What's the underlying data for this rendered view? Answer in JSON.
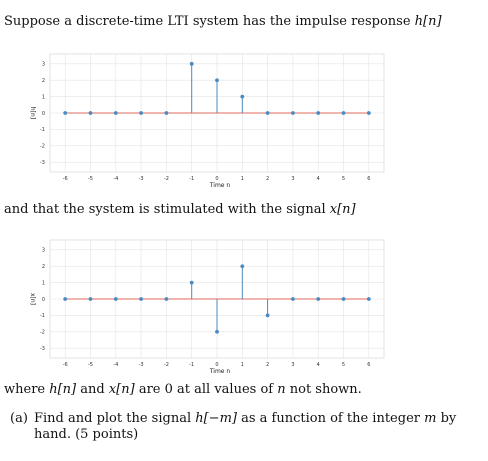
{
  "text": {
    "intro_prefix": "Suppose a discrete-time LTI system has the impulse response ",
    "intro_math": "h[n]",
    "middle_prefix": "and that the system is stimulated with the signal ",
    "middle_math": "x[n]",
    "where_1": "where ",
    "where_h": "h[n]",
    "where_2": " and ",
    "where_x": "x[n]",
    "where_3": " are 0 at all values of ",
    "where_n": "n",
    "where_4": " not shown.",
    "part_a_label": "(a)",
    "part_a_1": "Find and plot the signal ",
    "part_a_math": "h[−m]",
    "part_a_2": " as a function of the integer ",
    "part_a_m": "m",
    "part_a_3": " by hand. (5 points)"
  },
  "chart_data": [
    {
      "type": "stem",
      "xlabel": "Time n",
      "ylabel": "h[n]",
      "x": [
        -6,
        -5,
        -4,
        -3,
        -2,
        -1,
        0,
        1,
        2,
        3,
        4,
        5,
        6
      ],
      "values": [
        0,
        0,
        0,
        0,
        0,
        3,
        2,
        1,
        0,
        0,
        0,
        0,
        0
      ],
      "xticks": [
        "-6",
        "-5",
        "-4",
        "-3",
        "-2",
        "-1",
        "0",
        "1",
        "2",
        "3",
        "4",
        "5",
        "6"
      ],
      "yticks": [
        "3",
        "2",
        "1",
        "0",
        "-1",
        "-2",
        "-3"
      ],
      "ylim": [
        -3.6,
        3.6
      ],
      "xlim": [
        -6.6,
        6.6
      ],
      "grid": true,
      "colors": {
        "stem": "#4a8bc2",
        "baseline": "#e06a5c",
        "grid": "#e3e3e3"
      }
    },
    {
      "type": "stem",
      "xlabel": "Time n",
      "ylabel": "x[n]",
      "x": [
        -6,
        -5,
        -4,
        -3,
        -2,
        -1,
        0,
        1,
        2,
        3,
        4,
        5,
        6
      ],
      "values": [
        0,
        0,
        0,
        0,
        0,
        1,
        -2,
        2,
        -1,
        0,
        0,
        0,
        0
      ],
      "xticks": [
        "-6",
        "-5",
        "-4",
        "-3",
        "-2",
        "-1",
        "0",
        "1",
        "2",
        "3",
        "4",
        "5",
        "6"
      ],
      "yticks": [
        "3",
        "2",
        "1",
        "0",
        "-1",
        "-2",
        "-3"
      ],
      "ylim": [
        -3.6,
        3.6
      ],
      "xlim": [
        -6.6,
        6.6
      ],
      "grid": true,
      "colors": {
        "stem": "#4a8bc2",
        "baseline": "#e06a5c",
        "grid": "#e3e3e3"
      }
    }
  ]
}
